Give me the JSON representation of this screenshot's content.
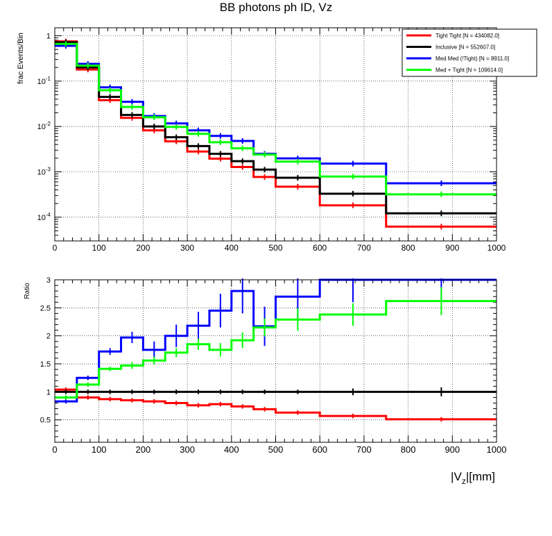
{
  "title": "BB photons ph ID, Vz",
  "colors": {
    "tight": "#ff0000",
    "inclusive": "#000000",
    "medmed": "#0000ff",
    "medtight": "#00ff00"
  },
  "bin_edges": [
    0,
    50,
    100,
    150,
    200,
    250,
    300,
    350,
    400,
    450,
    500,
    600,
    750,
    1000
  ],
  "x_ticks": [
    "0",
    "100",
    "200",
    "300",
    "400",
    "500",
    "600",
    "700",
    "800",
    "900",
    "1000"
  ],
  "x_axis_label": {
    "prefix": "|V",
    "subscript": "z",
    "suffix": "|[mm]"
  },
  "chart_data": [
    {
      "type": "line",
      "style": "histogram",
      "ylabel": "frac Events/Bin",
      "xlim": [
        0,
        1000
      ],
      "yscale": "log",
      "ylim": [
        3e-05,
        1.5
      ],
      "y_ticks": [
        {
          "value": 1,
          "mantissa": "1",
          "exponent": ""
        },
        {
          "value": 0.1,
          "mantissa": "10",
          "exponent": "-1"
        },
        {
          "value": 0.01,
          "mantissa": "10",
          "exponent": "-2"
        },
        {
          "value": 0.001,
          "mantissa": "10",
          "exponent": "-3"
        },
        {
          "value": 0.0001,
          "mantissa": "10",
          "exponent": "-4"
        }
      ],
      "grid": true,
      "legend_position": "top-right",
      "series": [
        {
          "key": "tight",
          "name": "Tight Tight [N = 434082.0]",
          "values": [
            0.75,
            0.18,
            0.038,
            0.0155,
            0.0082,
            0.0047,
            0.0028,
            0.00195,
            0.00128,
            0.00077,
            0.00047,
            0.000183,
            6.2e-05
          ]
        },
        {
          "key": "inclusive",
          "name": "Inclusive [N = 552607.0]",
          "values": [
            0.72,
            0.2,
            0.045,
            0.018,
            0.01,
            0.0058,
            0.0037,
            0.0025,
            0.00172,
            0.00112,
            0.00074,
            0.00033,
            0.000122
          ]
        },
        {
          "key": "medmed",
          "name": "Med Med (!Tight) [N = 8911.0]",
          "values": [
            0.6,
            0.24,
            0.073,
            0.035,
            0.017,
            0.0117,
            0.0082,
            0.0062,
            0.0048,
            0.0025,
            0.00198,
            0.00152,
            0.00056
          ]
        },
        {
          "key": "medtight",
          "name": "Med + Tight [N = 109614.0]",
          "values": [
            0.66,
            0.22,
            0.063,
            0.027,
            0.016,
            0.0098,
            0.0069,
            0.0045,
            0.0033,
            0.0024,
            0.00168,
            0.00079,
            0.00032
          ]
        }
      ]
    },
    {
      "type": "line",
      "style": "histogram",
      "ylabel": "Ratio",
      "xlim": [
        0,
        1000
      ],
      "ylim": [
        0.1,
        3
      ],
      "y_ticks": [
        "0.5",
        "1",
        "1.5",
        "2",
        "2.5",
        "3"
      ],
      "grid": true,
      "series": [
        {
          "key": "tight",
          "values": [
            1.04,
            0.9,
            0.87,
            0.85,
            0.83,
            0.8,
            0.76,
            0.78,
            0.74,
            0.69,
            0.63,
            0.57,
            0.51
          ],
          "errors": [
            0,
            0,
            0,
            0.02,
            0.02,
            0.02,
            0.03,
            0.03,
            0.04,
            0.04,
            0.04,
            0.04,
            0.04
          ]
        },
        {
          "key": "inclusive",
          "values": [
            1,
            1,
            1,
            1,
            1,
            1,
            1,
            1,
            1,
            1,
            1,
            1,
            1
          ],
          "errors": [
            0,
            0,
            0,
            0.01,
            0.02,
            0.02,
            0.03,
            0.03,
            0.04,
            0.04,
            0.04,
            0.06,
            0.08
          ]
        },
        {
          "key": "medmed",
          "values": [
            0.83,
            1.25,
            1.72,
            1.97,
            1.75,
            2.0,
            2.18,
            2.45,
            2.8,
            2.17,
            2.7,
            3.0,
            3.0
          ],
          "errors": [
            0,
            0.03,
            0.06,
            0.1,
            0.15,
            0.2,
            0.25,
            0.3,
            0.4,
            0.35,
            0.45,
            0.4,
            0.4
          ]
        },
        {
          "key": "medtight",
          "values": [
            0.9,
            1.13,
            1.41,
            1.47,
            1.56,
            1.7,
            1.85,
            1.75,
            1.92,
            2.15,
            2.29,
            2.38,
            2.62
          ],
          "errors": [
            0,
            0.03,
            0.04,
            0.06,
            0.07,
            0.08,
            0.1,
            0.12,
            0.14,
            0.16,
            0.2,
            0.2,
            0.25
          ]
        }
      ]
    }
  ]
}
